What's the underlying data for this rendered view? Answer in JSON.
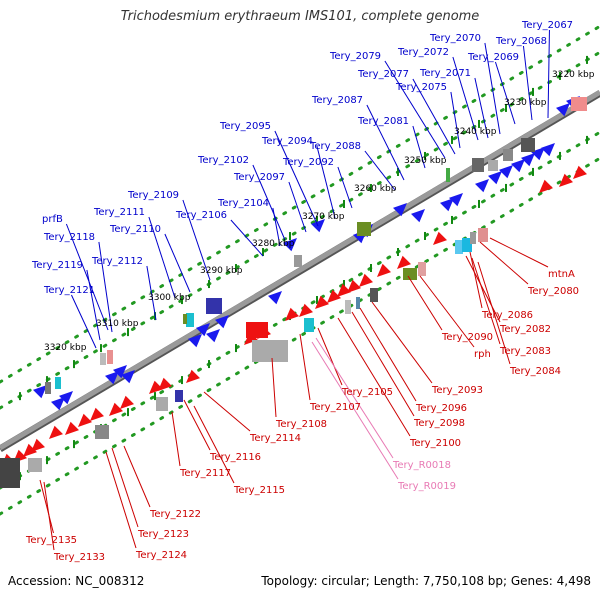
{
  "title": "Trichodesmium erythraeum IMS101, complete genome",
  "accession": "Accession: NC_008312",
  "topology": "Topology: circular; Length: 7,750,108 bp; Genes: 4,498",
  "colors": {
    "forward_label": "#0000cc",
    "reverse_label": "#cc0000",
    "rna_label": "#e87ab4",
    "backbone": "#888888",
    "dots": "#229922"
  },
  "ticks": [
    {
      "label": "3220 kbp"
    },
    {
      "label": "3230 kbp"
    },
    {
      "label": "3240 kbp"
    },
    {
      "label": "3250 kbp"
    },
    {
      "label": "3260 kbp"
    },
    {
      "label": "3270 kbp"
    },
    {
      "label": "3280 kbp"
    },
    {
      "label": "3290 kbp"
    },
    {
      "label": "3300 kbp"
    },
    {
      "label": "3310 kbp"
    },
    {
      "label": "3320 kbp"
    }
  ],
  "forward_genes": [
    "Tery_2067",
    "Tery_2068",
    "Tery_2069",
    "Tery_2070",
    "Tery_2071",
    "Tery_2072",
    "Tery_2075",
    "Tery_2077",
    "Tery_2079",
    "Tery_2081",
    "Tery_2087",
    "Tery_2088",
    "Tery_2092",
    "Tery_2094",
    "Tery_2095",
    "Tery_2097",
    "Tery_2102",
    "Tery_2104",
    "Tery_2106",
    "Tery_2109",
    "Tery_2110",
    "Tery_2111",
    "prfB",
    "Tery_2112",
    "Tery_2118",
    "Tery_2119",
    "Tery_2121"
  ],
  "reverse_genes": [
    "mtnA",
    "Tery_2080",
    "Tery_2086",
    "Tery_2082",
    "Tery_2083",
    "Tery_2084",
    "Tery_2090",
    "rph",
    "Tery_2093",
    "Tery_2096",
    "Tery_2098",
    "Tery_2100",
    "Tery_2105",
    "Tery_2107",
    "Tery_2108",
    "Tery_2114",
    "Tery_2116",
    "Tery_2117",
    "Tery_2115",
    "Tery_2122",
    "Tery_2123",
    "Tery_2124",
    "Tery_2135",
    "Tery_2133"
  ],
  "rna_genes": [
    "Tery_R0018",
    "Tery_R0019"
  ]
}
